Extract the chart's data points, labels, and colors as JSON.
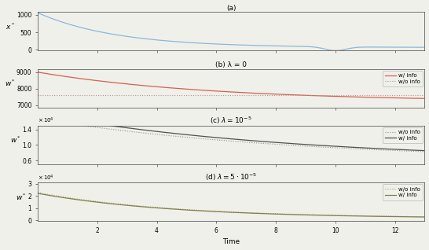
{
  "T": 13,
  "panel_a_title": "(a)",
  "panel_b_title": "(b) λ = 0",
  "xlabel": "Time",
  "legend_w_info": "w/ info",
  "legend_wo_info": "w/o info",
  "color_a": "#8ab8d8",
  "color_b_info": "#d46050",
  "color_b_noinfo_r": 180,
  "color_b_noinfo_g": 150,
  "color_b_noinfo_b": 150,
  "color_c_info": "#505050",
  "color_c_noinfo": "#909090",
  "color_d_info": "#808050",
  "color_d_noinfo": "#a0a060",
  "bg_color": "#ffffff",
  "fig_bg": "#f0f0ea",
  "yticks_a": [
    0,
    500,
    1000
  ],
  "ylim_a": [
    -30,
    1080
  ],
  "yticks_b": [
    7000,
    8000,
    9000
  ],
  "ylim_b": [
    6850,
    9200
  ],
  "ylim_c": [
    5000,
    15000
  ],
  "yticks_c": [
    6000,
    10000,
    14000
  ],
  "ylim_d": [
    -500,
    31000
  ],
  "yticks_d": [
    0,
    10000,
    20000,
    30000
  ],
  "xticks": [
    2,
    4,
    6,
    8,
    10,
    12
  ]
}
